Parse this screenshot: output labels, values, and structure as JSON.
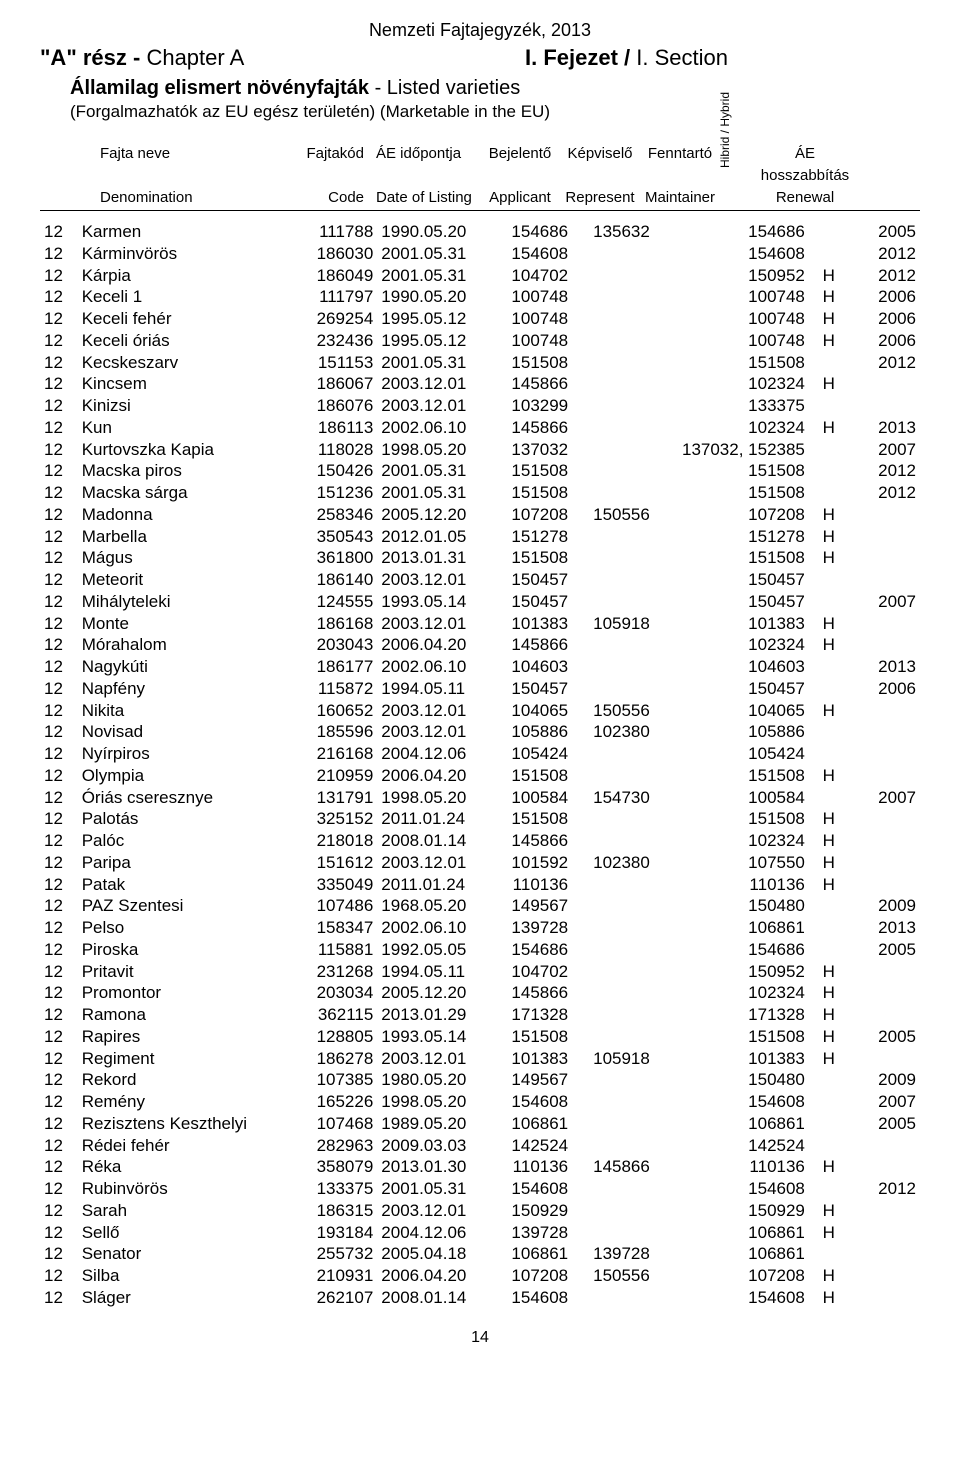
{
  "header": {
    "doc_title": "Nemzeti Fajtajegyzék, 2013",
    "chapter_left_bold": "\"A\" rész - ",
    "chapter_left_plain": "Chapter A",
    "chapter_right_bold": "I. Fejezet / ",
    "chapter_right_plain": "I. Section",
    "subtitle_bold": "Államilag elismert növényfajták",
    "subtitle_plain": " - Listed varieties",
    "subnote": "(Forgalmazhatók az EU egész területén) (Marketable in the EU)"
  },
  "columns": {
    "row1": {
      "name": "Fajta neve",
      "code": "Fajtakód",
      "date": "ÁE időpontja",
      "applicant": "Bejelentő",
      "represent": "Képviselő",
      "maintainer": "Fenntartó",
      "hybrid": "Hibrid / Hybrid",
      "renewal": "ÁE"
    },
    "row2": {
      "name": "Denomination",
      "code": "Code",
      "date": "Date of Listing",
      "applicant": "Applicant",
      "represent": "Represent",
      "maintainer": "Maintainer",
      "renewal_top": "hosszabbítás",
      "renewal": "Renewal"
    }
  },
  "page_number": "14",
  "rows": [
    {
      "idx": "12",
      "name": "Karmen",
      "code": "111788",
      "date": "1990.05.20",
      "app": "154686",
      "rep": "135632",
      "main": "154686",
      "hyb": "",
      "ren": "2005"
    },
    {
      "idx": "12",
      "name": "Kárminvörös",
      "code": "186030",
      "date": "2001.05.31",
      "app": "154608",
      "rep": "",
      "main": "154608",
      "hyb": "",
      "ren": "2012"
    },
    {
      "idx": "12",
      "name": "Kárpia",
      "code": "186049",
      "date": "2001.05.31",
      "app": "104702",
      "rep": "",
      "main": "150952",
      "hyb": "H",
      "ren": "2012"
    },
    {
      "idx": "12",
      "name": "Keceli 1",
      "code": "111797",
      "date": "1990.05.20",
      "app": "100748",
      "rep": "",
      "main": "100748",
      "hyb": "H",
      "ren": "2006"
    },
    {
      "idx": "12",
      "name": "Keceli fehér",
      "code": "269254",
      "date": "1995.05.12",
      "app": "100748",
      "rep": "",
      "main": "100748",
      "hyb": "H",
      "ren": "2006"
    },
    {
      "idx": "12",
      "name": "Keceli óriás",
      "code": "232436",
      "date": "1995.05.12",
      "app": "100748",
      "rep": "",
      "main": "100748",
      "hyb": "H",
      "ren": "2006"
    },
    {
      "idx": "12",
      "name": "Kecskeszarv",
      "code": "151153",
      "date": "2001.05.31",
      "app": "151508",
      "rep": "",
      "main": "151508",
      "hyb": "",
      "ren": "2012"
    },
    {
      "idx": "12",
      "name": "Kincsem",
      "code": "186067",
      "date": "2003.12.01",
      "app": "145866",
      "rep": "",
      "main": "102324",
      "hyb": "H",
      "ren": ""
    },
    {
      "idx": "12",
      "name": "Kinizsi",
      "code": "186076",
      "date": "2003.12.01",
      "app": "103299",
      "rep": "",
      "main": "133375",
      "hyb": "",
      "ren": ""
    },
    {
      "idx": "12",
      "name": "Kun",
      "code": "186113",
      "date": "2002.06.10",
      "app": "145866",
      "rep": "",
      "main": "102324",
      "hyb": "H",
      "ren": "2013"
    },
    {
      "idx": "12",
      "name": "Kurtovszka Kapia",
      "code": "118028",
      "date": "1998.05.20",
      "app": "137032",
      "rep": "",
      "main": "137032, 152385",
      "hyb": "",
      "ren": "2007"
    },
    {
      "idx": "12",
      "name": "Macska piros",
      "code": "150426",
      "date": "2001.05.31",
      "app": "151508",
      "rep": "",
      "main": "151508",
      "hyb": "",
      "ren": "2012"
    },
    {
      "idx": "12",
      "name": "Macska sárga",
      "code": "151236",
      "date": "2001.05.31",
      "app": "151508",
      "rep": "",
      "main": "151508",
      "hyb": "",
      "ren": "2012"
    },
    {
      "idx": "12",
      "name": "Madonna",
      "code": "258346",
      "date": "2005.12.20",
      "app": "107208",
      "rep": "150556",
      "main": "107208",
      "hyb": "H",
      "ren": ""
    },
    {
      "idx": "12",
      "name": "Marbella",
      "code": "350543",
      "date": "2012.01.05",
      "app": "151278",
      "rep": "",
      "main": "151278",
      "hyb": "H",
      "ren": ""
    },
    {
      "idx": "12",
      "name": "Mágus",
      "code": "361800",
      "date": "2013.01.31",
      "app": "151508",
      "rep": "",
      "main": "151508",
      "hyb": "H",
      "ren": ""
    },
    {
      "idx": "12",
      "name": "Meteorit",
      "code": "186140",
      "date": "2003.12.01",
      "app": "150457",
      "rep": "",
      "main": "150457",
      "hyb": "",
      "ren": ""
    },
    {
      "idx": "12",
      "name": "Mihályteleki",
      "code": "124555",
      "date": "1993.05.14",
      "app": "150457",
      "rep": "",
      "main": "150457",
      "hyb": "",
      "ren": "2007"
    },
    {
      "idx": "12",
      "name": "Monte",
      "code": "186168",
      "date": "2003.12.01",
      "app": "101383",
      "rep": "105918",
      "main": "101383",
      "hyb": "H",
      "ren": ""
    },
    {
      "idx": "12",
      "name": "Mórahalom",
      "code": "203043",
      "date": "2006.04.20",
      "app": "145866",
      "rep": "",
      "main": "102324",
      "hyb": "H",
      "ren": ""
    },
    {
      "idx": "12",
      "name": "Nagykúti",
      "code": "186177",
      "date": "2002.06.10",
      "app": "104603",
      "rep": "",
      "main": "104603",
      "hyb": "",
      "ren": "2013"
    },
    {
      "idx": "12",
      "name": "Napfény",
      "code": "115872",
      "date": "1994.05.11",
      "app": "150457",
      "rep": "",
      "main": "150457",
      "hyb": "",
      "ren": "2006"
    },
    {
      "idx": "12",
      "name": "Nikita",
      "code": "160652",
      "date": "2003.12.01",
      "app": "104065",
      "rep": "150556",
      "main": "104065",
      "hyb": "H",
      "ren": ""
    },
    {
      "idx": "12",
      "name": "Novisad",
      "code": "185596",
      "date": "2003.12.01",
      "app": "105886",
      "rep": "102380",
      "main": "105886",
      "hyb": "",
      "ren": ""
    },
    {
      "idx": "12",
      "name": "Nyírpiros",
      "code": "216168",
      "date": "2004.12.06",
      "app": "105424",
      "rep": "",
      "main": "105424",
      "hyb": "",
      "ren": ""
    },
    {
      "idx": "12",
      "name": "Olympia",
      "code": "210959",
      "date": "2006.04.20",
      "app": "151508",
      "rep": "",
      "main": "151508",
      "hyb": "H",
      "ren": ""
    },
    {
      "idx": "12",
      "name": "Óriás cseresznye",
      "code": "131791",
      "date": "1998.05.20",
      "app": "100584",
      "rep": "154730",
      "main": "100584",
      "hyb": "",
      "ren": "2007"
    },
    {
      "idx": "12",
      "name": "Palotás",
      "code": "325152",
      "date": "2011.01.24",
      "app": "151508",
      "rep": "",
      "main": "151508",
      "hyb": "H",
      "ren": ""
    },
    {
      "idx": "12",
      "name": "Palóc",
      "code": "218018",
      "date": "2008.01.14",
      "app": "145866",
      "rep": "",
      "main": "102324",
      "hyb": "H",
      "ren": ""
    },
    {
      "idx": "12",
      "name": "Paripa",
      "code": "151612",
      "date": "2003.12.01",
      "app": "101592",
      "rep": "102380",
      "main": "107550",
      "hyb": "H",
      "ren": ""
    },
    {
      "idx": "12",
      "name": "Patak",
      "code": "335049",
      "date": "2011.01.24",
      "app": "110136",
      "rep": "",
      "main": "110136",
      "hyb": "H",
      "ren": ""
    },
    {
      "idx": "12",
      "name": "PAZ Szentesi",
      "code": "107486",
      "date": "1968.05.20",
      "app": "149567",
      "rep": "",
      "main": "150480",
      "hyb": "",
      "ren": "2009"
    },
    {
      "idx": "12",
      "name": "Pelso",
      "code": "158347",
      "date": "2002.06.10",
      "app": "139728",
      "rep": "",
      "main": "106861",
      "hyb": "",
      "ren": "2013"
    },
    {
      "idx": "12",
      "name": "Piroska",
      "code": "115881",
      "date": "1992.05.05",
      "app": "154686",
      "rep": "",
      "main": "154686",
      "hyb": "",
      "ren": "2005"
    },
    {
      "idx": "12",
      "name": "Pritavit",
      "code": "231268",
      "date": "1994.05.11",
      "app": "104702",
      "rep": "",
      "main": "150952",
      "hyb": "H",
      "ren": ""
    },
    {
      "idx": "12",
      "name": "Promontor",
      "code": "203034",
      "date": "2005.12.20",
      "app": "145866",
      "rep": "",
      "main": "102324",
      "hyb": "H",
      "ren": ""
    },
    {
      "idx": "12",
      "name": "Ramona",
      "code": "362115",
      "date": "2013.01.29",
      "app": "171328",
      "rep": "",
      "main": "171328",
      "hyb": "H",
      "ren": ""
    },
    {
      "idx": "12",
      "name": "Rapires",
      "code": "128805",
      "date": "1993.05.14",
      "app": "151508",
      "rep": "",
      "main": "151508",
      "hyb": "H",
      "ren": "2005"
    },
    {
      "idx": "12",
      "name": "Regiment",
      "code": "186278",
      "date": "2003.12.01",
      "app": "101383",
      "rep": "105918",
      "main": "101383",
      "hyb": "H",
      "ren": ""
    },
    {
      "idx": "12",
      "name": "Rekord",
      "code": "107385",
      "date": "1980.05.20",
      "app": "149567",
      "rep": "",
      "main": "150480",
      "hyb": "",
      "ren": "2009"
    },
    {
      "idx": "12",
      "name": "Remény",
      "code": "165226",
      "date": "1998.05.20",
      "app": "154608",
      "rep": "",
      "main": "154608",
      "hyb": "",
      "ren": "2007"
    },
    {
      "idx": "12",
      "name": "Rezisztens Keszthelyi",
      "code": "107468",
      "date": "1989.05.20",
      "app": "106861",
      "rep": "",
      "main": "106861",
      "hyb": "",
      "ren": "2005"
    },
    {
      "idx": "12",
      "name": "Rédei fehér",
      "code": "282963",
      "date": "2009.03.03",
      "app": "142524",
      "rep": "",
      "main": "142524",
      "hyb": "",
      "ren": ""
    },
    {
      "idx": "12",
      "name": "Réka",
      "code": "358079",
      "date": "2013.01.30",
      "app": "110136",
      "rep": "145866",
      "main": "110136",
      "hyb": "H",
      "ren": ""
    },
    {
      "idx": "12",
      "name": "Rubinvörös",
      "code": "133375",
      "date": "2001.05.31",
      "app": "154608",
      "rep": "",
      "main": "154608",
      "hyb": "",
      "ren": "2012"
    },
    {
      "idx": "12",
      "name": "Sarah",
      "code": "186315",
      "date": "2003.12.01",
      "app": "150929",
      "rep": "",
      "main": "150929",
      "hyb": "H",
      "ren": ""
    },
    {
      "idx": "12",
      "name": "Sellő",
      "code": "193184",
      "date": "2004.12.06",
      "app": "139728",
      "rep": "",
      "main": "106861",
      "hyb": "H",
      "ren": ""
    },
    {
      "idx": "12",
      "name": "Senator",
      "code": "255732",
      "date": "2005.04.18",
      "app": "106861",
      "rep": "139728",
      "main": "106861",
      "hyb": "",
      "ren": ""
    },
    {
      "idx": "12",
      "name": "Silba",
      "code": "210931",
      "date": "2006.04.20",
      "app": "107208",
      "rep": "150556",
      "main": "107208",
      "hyb": "H",
      "ren": ""
    },
    {
      "idx": "12",
      "name": "Sláger",
      "code": "262107",
      "date": "2008.01.14",
      "app": "154608",
      "rep": "",
      "main": "154608",
      "hyb": "H",
      "ren": ""
    }
  ]
}
